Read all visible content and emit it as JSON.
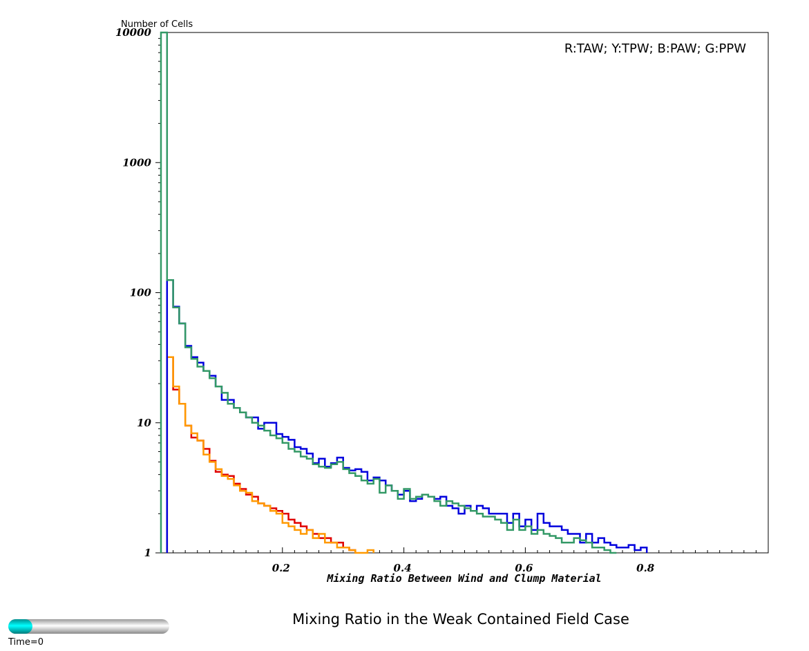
{
  "chart_data": {
    "type": "line",
    "step": true,
    "ylabel": "Number of Cells",
    "xlabel": "Mixing Ratio Between Wind and Clump Material",
    "yscale": "log",
    "ylim": [
      1,
      10000
    ],
    "xlim": [
      0,
      1.0
    ],
    "y_ticks": [
      {
        "value": 10000,
        "label": "10000"
      },
      {
        "value": 1000,
        "label": "1000"
      },
      {
        "value": 100,
        "label": "100"
      },
      {
        "value": 10,
        "label": "10"
      },
      {
        "value": 1,
        "label": "1"
      }
    ],
    "x_ticks": [
      {
        "value": 0.2,
        "label": "0.2"
      },
      {
        "value": 0.4,
        "label": "0.4"
      },
      {
        "value": 0.6,
        "label": "0.6"
      },
      {
        "value": 0.8,
        "label": "0.8"
      }
    ],
    "annotation": "R:TAW; Y:TPW; B:PAW; G:PPW",
    "grid": false,
    "bin_width": 0.01,
    "series": [
      {
        "color": "#e00000",
        "x_start": 0.01,
        "values": [
          32,
          18,
          14,
          9.5,
          7.7,
          7.3,
          6.3,
          5.1,
          4.2,
          4.0,
          3.9,
          3.4,
          3.1,
          2.8,
          2.7,
          2.4,
          2.3,
          2.2,
          2.1,
          2.0,
          1.8,
          1.7,
          1.6,
          1.5,
          1.4,
          1.3,
          1.3,
          1.2,
          1.2,
          1.1,
          1.05
        ]
      },
      {
        "color": "#ff9900",
        "x_start": 0.01,
        "values": [
          32,
          19,
          14,
          9.5,
          8.3,
          7.3,
          5.7,
          5.0,
          4.4,
          3.9,
          3.7,
          3.3,
          3.0,
          2.9,
          2.5,
          2.4,
          2.3,
          2.1,
          2.0,
          1.7,
          1.6,
          1.5,
          1.4,
          1.5,
          1.3,
          1.4,
          1.2,
          1.2,
          1.1,
          1.1,
          1.05,
          1.0,
          1.0,
          1.05
        ]
      },
      {
        "color": "#0000dd",
        "x_start": 0.01,
        "values": [
          125,
          78,
          58,
          39,
          32,
          29,
          25,
          23,
          19,
          15,
          15,
          13,
          12,
          11,
          11,
          9.0,
          10,
          10,
          8.2,
          7.8,
          7.4,
          6.5,
          6.3,
          5.8,
          4.9,
          5.3,
          4.6,
          4.9,
          5.4,
          4.5,
          4.3,
          4.4,
          4.2,
          3.6,
          3.8,
          3.6,
          3.3,
          3.0,
          2.8,
          3.0,
          2.5,
          2.6,
          2.8,
          2.7,
          2.6,
          2.7,
          2.3,
          2.2,
          2.0,
          2.3,
          2.1,
          2.3,
          2.2,
          2.0,
          2.0,
          2.0,
          1.7,
          2.0,
          1.6,
          1.8,
          1.5,
          2.0,
          1.7,
          1.6,
          1.6,
          1.5,
          1.4,
          1.4,
          1.2,
          1.4,
          1.2,
          1.3,
          1.2,
          1.15,
          1.1,
          1.1,
          1.15,
          1.05,
          1.1
        ]
      },
      {
        "color": "#339966",
        "x_start": 0.0,
        "values": [
          10000,
          125,
          77,
          58,
          38,
          31,
          27,
          25,
          22,
          19,
          17,
          14,
          13,
          12,
          11,
          10,
          9.5,
          8.7,
          8.0,
          7.6,
          7.0,
          6.3,
          6.0,
          5.5,
          5.3,
          4.8,
          4.6,
          4.5,
          4.8,
          5.0,
          4.4,
          4.1,
          3.9,
          3.6,
          3.4,
          3.7,
          2.9,
          3.3,
          3.0,
          2.6,
          3.1,
          2.6,
          2.7,
          2.8,
          2.7,
          2.5,
          2.3,
          2.5,
          2.4,
          2.3,
          2.2,
          2.1,
          2.0,
          1.9,
          1.9,
          1.8,
          1.7,
          1.5,
          1.8,
          1.5,
          1.6,
          1.4,
          1.5,
          1.4,
          1.35,
          1.3,
          1.2,
          1.2,
          1.3,
          1.25,
          1.2,
          1.1,
          1.1,
          1.05,
          1.0
        ]
      }
    ]
  },
  "caption": "Mixing Ratio in the Weak Contained Field Case",
  "time_slider": {
    "label": "Time=0",
    "progress": 0.15,
    "accent": "#00e5e5"
  }
}
